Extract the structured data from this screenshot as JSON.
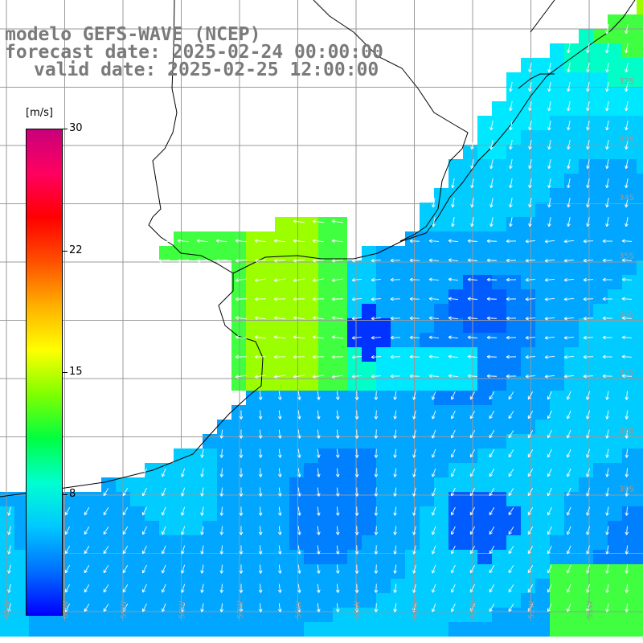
{
  "title": {
    "line1": "modelo GEFS-WAVE (NCEP)",
    "line2": "forecast date: 2025-02-24 00:00:00",
    "line3": "valid date: 2025-02-25 12:00:00"
  },
  "colorbar": {
    "unit": "[m/s]",
    "min": 0,
    "max": 30,
    "ticks": [
      {
        "label": "30",
        "value": 30
      },
      {
        "label": "22",
        "value": 22.5
      },
      {
        "label": "15",
        "value": 15
      },
      {
        "label": "8",
        "value": 7.5
      }
    ],
    "colors": [
      "#0000ff",
      "#0070ff",
      "#00c8ff",
      "#00ffd0",
      "#00ff40",
      "#80ff00",
      "#ffff00",
      "#ffb000",
      "#ff5000",
      "#ff0000",
      "#ff0060",
      "#c8007a"
    ]
  },
  "map": {
    "lon_labels": [
      "61W",
      "60W",
      "59W",
      "58W",
      "57W",
      "56W",
      "55W",
      "54W",
      "53W",
      "52W",
      "51W"
    ],
    "lat_labels": [
      "32S",
      "33S",
      "34S",
      "35S",
      "36S",
      "37S",
      "38S",
      "39S"
    ],
    "ocean_colors": [
      "#0033ff",
      "#005cff",
      "#0080ff",
      "#00a6ff",
      "#00ccff",
      "#00e8ff",
      "#00ffc8",
      "#40ff40",
      "#9bff00"
    ],
    "arrow_color": "#ffffff",
    "coast_color": "#000000",
    "grid_color": "#999999"
  }
}
